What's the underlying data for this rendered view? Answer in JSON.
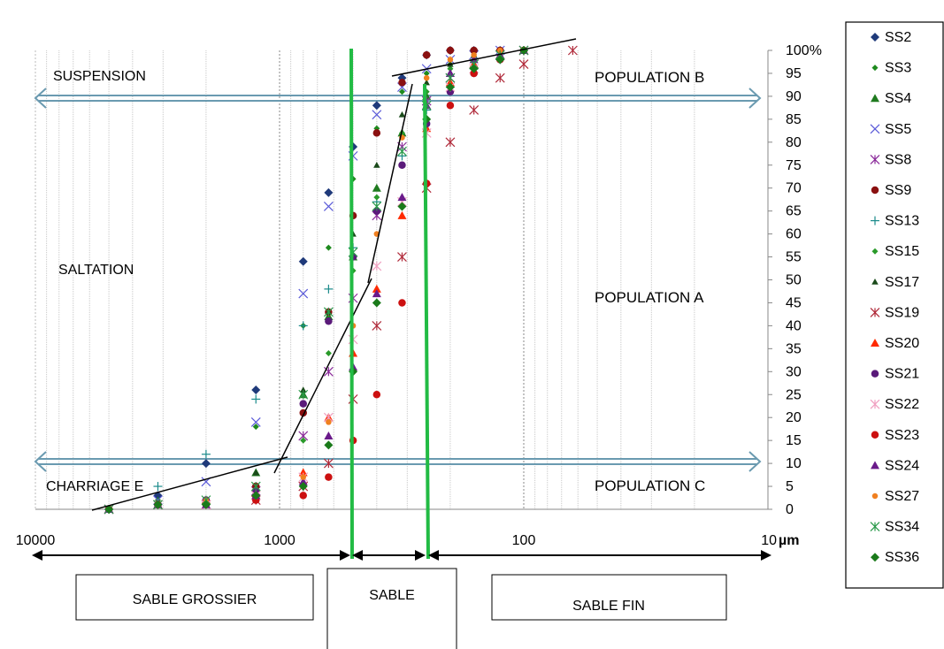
{
  "chart_data": {
    "type": "scatter",
    "title": "",
    "xlabel": "µm",
    "ylabel": "",
    "x_scale": "log",
    "x_reversed": true,
    "xlim": [
      10000,
      10
    ],
    "ylim": [
      0,
      100
    ],
    "x_tick_labels": [
      "10000",
      "1000",
      "100",
      "10"
    ],
    "y_tick_labels": [
      "0",
      "5",
      "10",
      "15",
      "20",
      "25",
      "30",
      "35",
      "40",
      "45",
      "50",
      "55",
      "60",
      "65",
      "70",
      "75",
      "80",
      "85",
      "90",
      "95",
      "100%"
    ],
    "grid": true,
    "legend": "right",
    "zones": {
      "suspension": "SUSPENSION",
      "saltation": "SALTATION",
      "charriage": "CHARRIAGE E",
      "population_a": "POPULATION A",
      "population_b": "POPULATION B",
      "population_c": "POPULATION C"
    },
    "size_classes": {
      "coarse": "SABLE GROSSIER",
      "medium": "SABLE",
      "fine": "SABLE FIN"
    },
    "x_levels": [
      5000,
      3150,
      2000,
      1250,
      800,
      630,
      500,
      400,
      315,
      250,
      200,
      160,
      125,
      100,
      63,
      40
    ],
    "series": [
      {
        "name": "SS2",
        "marker": "diamond",
        "color": "#1f3a7a",
        "points": [
          [
            5000,
            0
          ],
          [
            3150,
            3
          ],
          [
            2000,
            10
          ],
          [
            1250,
            26
          ],
          [
            800,
            54
          ],
          [
            630,
            69
          ],
          [
            500,
            79
          ],
          [
            400,
            88
          ],
          [
            315,
            94
          ],
          [
            250,
            99
          ],
          [
            200,
            100
          ],
          [
            160,
            100
          ],
          [
            125,
            100
          ]
        ]
      },
      {
        "name": "SS3",
        "marker": "diamond-small",
        "color": "#1e8a1e",
        "points": [
          [
            5000,
            0
          ],
          [
            3150,
            2
          ],
          [
            2000,
            2
          ],
          [
            1250,
            18
          ],
          [
            800,
            40
          ],
          [
            630,
            57
          ],
          [
            500,
            72
          ],
          [
            400,
            83
          ],
          [
            315,
            91
          ],
          [
            250,
            95
          ],
          [
            200,
            97
          ],
          [
            160,
            98
          ],
          [
            125,
            99
          ],
          [
            100,
            100
          ]
        ]
      },
      {
        "name": "SS4",
        "marker": "triangle",
        "color": "#1f7a1f",
        "points": [
          [
            5000,
            0
          ],
          [
            3150,
            1
          ],
          [
            2000,
            2
          ],
          [
            1250,
            8
          ],
          [
            800,
            25
          ],
          [
            630,
            42
          ],
          [
            500,
            55
          ],
          [
            400,
            70
          ],
          [
            315,
            82
          ],
          [
            250,
            90
          ],
          [
            200,
            95
          ],
          [
            160,
            97
          ],
          [
            125,
            99
          ],
          [
            100,
            100
          ]
        ]
      },
      {
        "name": "SS5",
        "marker": "x",
        "color": "#5a5ad8",
        "points": [
          [
            5000,
            0
          ],
          [
            3150,
            2
          ],
          [
            2000,
            6
          ],
          [
            1250,
            19
          ],
          [
            800,
            47
          ],
          [
            630,
            66
          ],
          [
            500,
            77
          ],
          [
            400,
            86
          ],
          [
            315,
            92
          ],
          [
            250,
            96
          ],
          [
            200,
            98
          ],
          [
            160,
            99
          ],
          [
            125,
            100
          ]
        ]
      },
      {
        "name": "SS8",
        "marker": "asterisk",
        "color": "#8a2a9a",
        "points": [
          [
            5000,
            0
          ],
          [
            3150,
            1
          ],
          [
            2000,
            1
          ],
          [
            1250,
            4
          ],
          [
            800,
            16
          ],
          [
            630,
            30
          ],
          [
            500,
            46
          ],
          [
            400,
            64
          ],
          [
            315,
            79
          ],
          [
            250,
            89
          ],
          [
            200,
            94
          ],
          [
            160,
            97
          ],
          [
            125,
            99
          ],
          [
            100,
            100
          ]
        ]
      },
      {
        "name": "SS9",
        "marker": "circle",
        "color": "#8a1010",
        "points": [
          [
            5000,
            0
          ],
          [
            3150,
            1
          ],
          [
            2000,
            2
          ],
          [
            1250,
            5
          ],
          [
            800,
            21
          ],
          [
            630,
            43
          ],
          [
            500,
            64
          ],
          [
            400,
            82
          ],
          [
            315,
            93
          ],
          [
            250,
            99
          ],
          [
            200,
            100
          ],
          [
            160,
            100
          ],
          [
            125,
            100
          ]
        ]
      },
      {
        "name": "SS13",
        "marker": "plus",
        "color": "#1a8a8a",
        "points": [
          [
            5000,
            0
          ],
          [
            3150,
            5
          ],
          [
            2000,
            12
          ],
          [
            1250,
            24
          ],
          [
            800,
            40
          ],
          [
            630,
            48
          ],
          [
            500,
            57
          ],
          [
            400,
            67
          ],
          [
            315,
            77
          ],
          [
            250,
            87
          ],
          [
            200,
            92
          ],
          [
            160,
            96
          ],
          [
            125,
            98
          ],
          [
            100,
            100
          ]
        ]
      },
      {
        "name": "SS15",
        "marker": "diamond-small",
        "color": "#2a9a2a",
        "points": [
          [
            5000,
            0
          ],
          [
            3150,
            1
          ],
          [
            2000,
            2
          ],
          [
            1250,
            3
          ],
          [
            800,
            15
          ],
          [
            630,
            34
          ],
          [
            500,
            52
          ],
          [
            400,
            68
          ],
          [
            315,
            82
          ],
          [
            250,
            91
          ],
          [
            200,
            96
          ],
          [
            160,
            98
          ],
          [
            125,
            99
          ],
          [
            100,
            100
          ]
        ]
      },
      {
        "name": "SS17",
        "marker": "triangle-small",
        "color": "#1a4a1a",
        "points": [
          [
            5000,
            0
          ],
          [
            3150,
            1
          ],
          [
            2000,
            2
          ],
          [
            1250,
            8
          ],
          [
            800,
            26
          ],
          [
            630,
            43
          ],
          [
            500,
            60
          ],
          [
            400,
            75
          ],
          [
            315,
            86
          ],
          [
            250,
            93
          ],
          [
            200,
            97
          ],
          [
            160,
            99
          ],
          [
            125,
            100
          ]
        ]
      },
      {
        "name": "SS19",
        "marker": "asterisk",
        "color": "#b02a3a",
        "points": [
          [
            5000,
            0
          ],
          [
            3150,
            1
          ],
          [
            2000,
            1
          ],
          [
            1250,
            2
          ],
          [
            800,
            5
          ],
          [
            630,
            10
          ],
          [
            500,
            24
          ],
          [
            400,
            40
          ],
          [
            315,
            55
          ],
          [
            250,
            70
          ],
          [
            200,
            80
          ],
          [
            160,
            87
          ],
          [
            125,
            94
          ],
          [
            100,
            97
          ],
          [
            63,
            100
          ]
        ]
      },
      {
        "name": "SS20",
        "marker": "triangle",
        "color": "#ff2a00",
        "points": [
          [
            5000,
            0
          ],
          [
            3150,
            1
          ],
          [
            2000,
            2
          ],
          [
            1250,
            3
          ],
          [
            800,
            8
          ],
          [
            630,
            20
          ],
          [
            500,
            34
          ],
          [
            400,
            48
          ],
          [
            315,
            64
          ],
          [
            250,
            83
          ],
          [
            200,
            93
          ],
          [
            160,
            97
          ],
          [
            125,
            99
          ],
          [
            100,
            100
          ]
        ]
      },
      {
        "name": "SS21",
        "marker": "circle",
        "color": "#5a1a7a",
        "points": [
          [
            5000,
            0
          ],
          [
            3150,
            1
          ],
          [
            2000,
            2
          ],
          [
            1250,
            4
          ],
          [
            800,
            23
          ],
          [
            630,
            41
          ],
          [
            500,
            55
          ],
          [
            400,
            65
          ],
          [
            315,
            75
          ],
          [
            250,
            84
          ],
          [
            200,
            91
          ],
          [
            160,
            95
          ],
          [
            125,
            98
          ],
          [
            100,
            100
          ]
        ]
      },
      {
        "name": "SS22",
        "marker": "asterisk",
        "color": "#f0a0c0",
        "points": [
          [
            5000,
            0
          ],
          [
            3150,
            1
          ],
          [
            2000,
            1
          ],
          [
            1250,
            3
          ],
          [
            800,
            7
          ],
          [
            630,
            20
          ],
          [
            500,
            37
          ],
          [
            400,
            53
          ],
          [
            315,
            67
          ],
          [
            250,
            82
          ],
          [
            200,
            92
          ],
          [
            160,
            96
          ],
          [
            125,
            99
          ],
          [
            100,
            100
          ]
        ]
      },
      {
        "name": "SS23",
        "marker": "circle",
        "color": "#cc1010",
        "points": [
          [
            5000,
            0
          ],
          [
            3150,
            1
          ],
          [
            2000,
            1
          ],
          [
            1250,
            2
          ],
          [
            800,
            3
          ],
          [
            630,
            7
          ],
          [
            500,
            15
          ],
          [
            400,
            25
          ],
          [
            315,
            45
          ],
          [
            250,
            71
          ],
          [
            200,
            88
          ],
          [
            160,
            95
          ],
          [
            125,
            98
          ],
          [
            100,
            100
          ]
        ]
      },
      {
        "name": "SS24",
        "marker": "triangle",
        "color": "#6a1a8a",
        "points": [
          [
            5000,
            0
          ],
          [
            3150,
            1
          ],
          [
            2000,
            1
          ],
          [
            1250,
            3
          ],
          [
            800,
            6
          ],
          [
            630,
            16
          ],
          [
            500,
            31
          ],
          [
            400,
            47
          ],
          [
            315,
            68
          ],
          [
            250,
            88
          ],
          [
            200,
            95
          ],
          [
            160,
            98
          ],
          [
            125,
            99
          ],
          [
            100,
            100
          ]
        ]
      },
      {
        "name": "SS27",
        "marker": "circle-small",
        "color": "#f08020",
        "points": [
          [
            5000,
            0
          ],
          [
            3150,
            1
          ],
          [
            2000,
            2
          ],
          [
            1250,
            3
          ],
          [
            800,
            7
          ],
          [
            630,
            19
          ],
          [
            500,
            40
          ],
          [
            400,
            60
          ],
          [
            315,
            81
          ],
          [
            250,
            94
          ],
          [
            200,
            98
          ],
          [
            160,
            99
          ],
          [
            125,
            100
          ]
        ]
      },
      {
        "name": "SS34",
        "marker": "asterisk",
        "color": "#2a9a4a",
        "points": [
          [
            5000,
            0
          ],
          [
            3150,
            1
          ],
          [
            2000,
            2
          ],
          [
            1250,
            5
          ],
          [
            800,
            25
          ],
          [
            630,
            43
          ],
          [
            500,
            56
          ],
          [
            400,
            66
          ],
          [
            315,
            78
          ],
          [
            250,
            88
          ],
          [
            200,
            94
          ],
          [
            160,
            97
          ],
          [
            125,
            99
          ],
          [
            100,
            100
          ]
        ]
      },
      {
        "name": "SS36",
        "marker": "diamond",
        "color": "#1a7a1a",
        "points": [
          [
            5000,
            0
          ],
          [
            3150,
            1
          ],
          [
            2000,
            1
          ],
          [
            1250,
            3
          ],
          [
            800,
            5
          ],
          [
            630,
            14
          ],
          [
            500,
            30
          ],
          [
            400,
            45
          ],
          [
            315,
            66
          ],
          [
            250,
            85
          ],
          [
            200,
            92
          ],
          [
            160,
            96
          ],
          [
            125,
            98
          ],
          [
            100,
            100
          ]
        ]
      }
    ]
  }
}
